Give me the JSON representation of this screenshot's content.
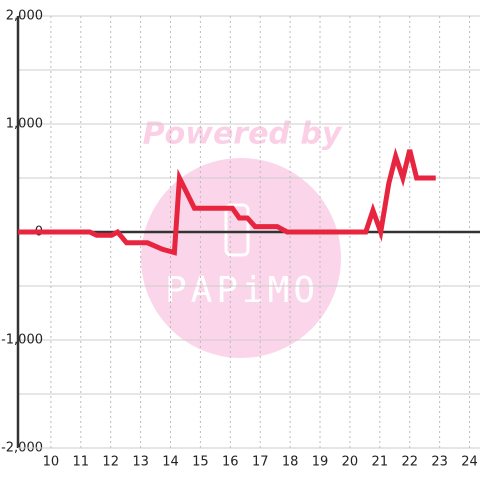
{
  "chart_data": {
    "type": "line",
    "watermark": [
      "Powered by",
      "PAPiMO"
    ],
    "x": [
      8.9,
      11.3,
      11.53,
      12.03,
      12.23,
      12.53,
      13.23,
      13.73,
      14.13,
      14.3,
      14.8,
      16.07,
      16.3,
      16.57,
      16.83,
      17.57,
      17.9,
      20.53,
      20.77,
      21.03,
      21.3,
      21.53,
      21.77,
      22.0,
      22.23,
      22.87
    ],
    "series": [
      {
        "color": "#e8253f",
        "values": [
          0,
          0,
          -30,
          -30,
          0,
          -100,
          -100,
          -160,
          -190,
          500,
          220,
          220,
          130,
          130,
          50,
          50,
          0,
          0,
          200,
          0,
          450,
          700,
          500,
          760,
          500,
          500
        ]
      }
    ],
    "xlim": [
      8.9,
      24.35
    ],
    "xticks": [
      10,
      11,
      12,
      13,
      14,
      15,
      16,
      17,
      18,
      19,
      20,
      21,
      22,
      23,
      24
    ],
    "ylim": [
      -2000,
      2000
    ],
    "yticks": [
      {
        "value": -2000,
        "label": "-2,000"
      },
      {
        "value": -1000,
        "label": "-1,000"
      },
      0,
      {
        "value": 1000,
        "label": "1,000"
      },
      {
        "value": 2000,
        "label": "2,000"
      }
    ],
    "y_minor_ticks": [
      -1500,
      -500,
      500,
      1500
    ],
    "grid": true
  }
}
